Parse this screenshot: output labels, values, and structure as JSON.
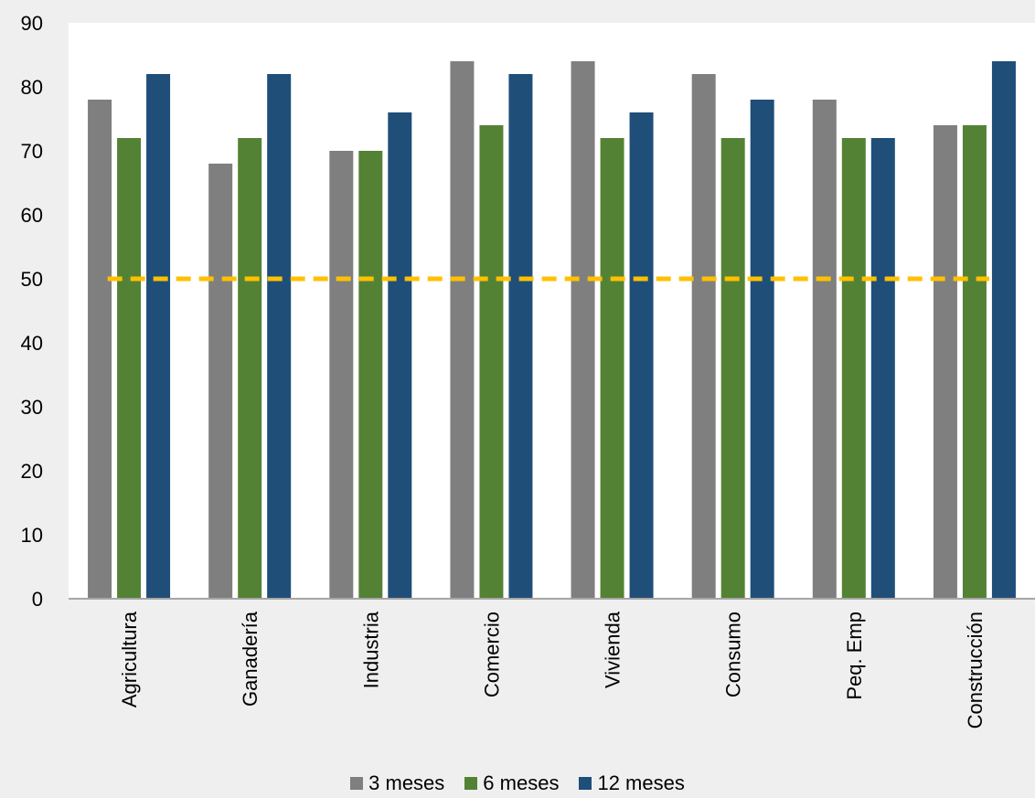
{
  "chart_data": {
    "type": "bar",
    "title": "",
    "xlabel": "",
    "ylabel": "",
    "ylim": [
      0,
      90
    ],
    "yticks": [
      0,
      10,
      20,
      30,
      40,
      50,
      60,
      70,
      80,
      90
    ],
    "grid": false,
    "legend_position": "bottom",
    "categories": [
      "Agricultura",
      "Ganadería",
      "Industria",
      "Comercio",
      "Vivienda",
      "Consumo",
      "Peq. Emp",
      "Construcción"
    ],
    "series": [
      {
        "name": "3 meses",
        "color": "#7f7f7f",
        "values": [
          78,
          68,
          70,
          84,
          84,
          82,
          78,
          74
        ]
      },
      {
        "name": "6 meses",
        "color": "#548235",
        "values": [
          72,
          72,
          70,
          74,
          72,
          72,
          72,
          74
        ]
      },
      {
        "name": "12 meses",
        "color": "#1f4e79",
        "values": [
          82,
          82,
          76,
          82,
          76,
          78,
          72,
          84
        ]
      }
    ],
    "reference_line": {
      "value": 50,
      "color": "#ffc000",
      "style": "dashed"
    }
  }
}
